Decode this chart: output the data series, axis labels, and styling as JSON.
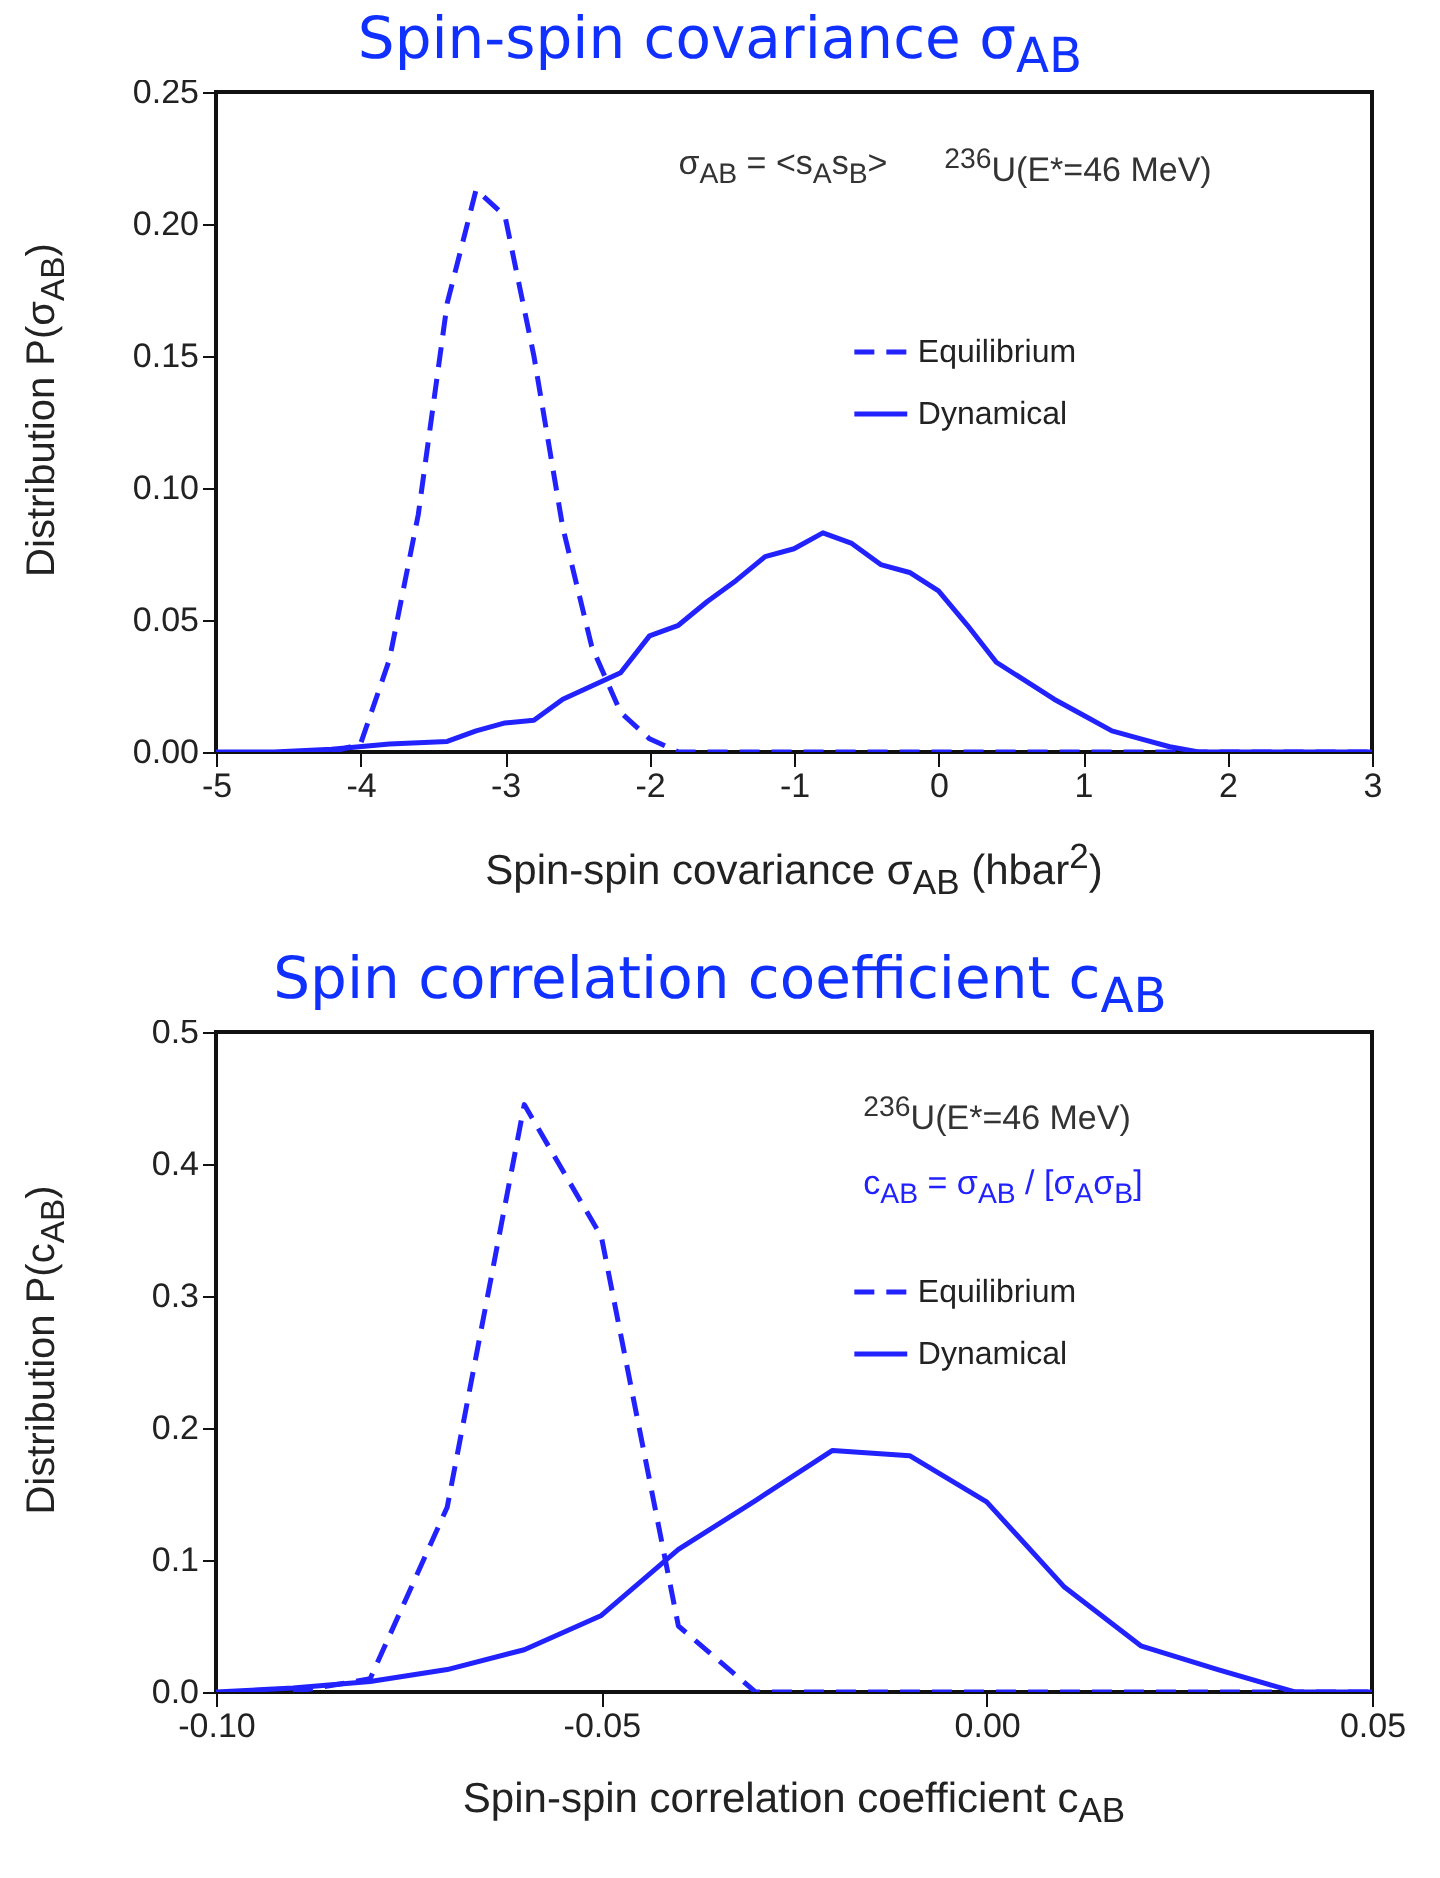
{
  "chart_data": [
    {
      "type": "line",
      "title": "Spin-spin covariance σ$_{AB}$",
      "xlabel": "Spin-spin covariance σ$_{AB}$  (hbar$^{2}$)",
      "ylabel": "Distribution P(σ$_{AB}$)",
      "annotations": [
        "σ$_{AB}$ = <s$_{A}$s$_{B}$>",
        "$^{236}$U(E*=46 MeV)"
      ],
      "xlim": [
        -5,
        3
      ],
      "xticks": [
        -5,
        -4,
        -3,
        -2,
        -1,
        0,
        1,
        2,
        3
      ],
      "ylim": [
        0,
        0.25
      ],
      "yticks": [
        {
          "value": 0,
          "label": "0.00"
        },
        {
          "value": 0.05,
          "label": "0.05"
        },
        {
          "value": 0.1,
          "label": "0.10"
        },
        {
          "value": 0.15,
          "label": "0.15"
        },
        {
          "value": 0.2,
          "label": "0.20"
        },
        {
          "value": 0.25,
          "label": "0.25"
        }
      ],
      "legend": "top right",
      "series": [
        {
          "name": "Equilibrium",
          "color": "#2222ff",
          "line_style": "dashed",
          "x": [
            -4.2,
            -4.0,
            -3.8,
            -3.6,
            -3.4,
            -3.2,
            -3.0,
            -2.8,
            -2.6,
            -2.4,
            -2.2,
            -2.0,
            -1.8,
            3.0
          ],
          "values": [
            0,
            0.003,
            0.035,
            0.09,
            0.17,
            0.213,
            0.203,
            0.15,
            0.085,
            0.04,
            0.015,
            0.005,
            0,
            0
          ]
        },
        {
          "name": "Dynamical",
          "color": "#2222ff",
          "line_style": "solid",
          "x": [
            -5,
            -4.6,
            -4.2,
            -3.8,
            -3.4,
            -3.2,
            -3.0,
            -2.8,
            -2.6,
            -2.4,
            -2.2,
            -2.0,
            -1.8,
            -1.6,
            -1.4,
            -1.2,
            -1.0,
            -0.8,
            -0.6,
            -0.4,
            -0.2,
            0,
            0.2,
            0.4,
            0.6,
            0.8,
            1.0,
            1.2,
            1.4,
            1.6,
            1.8,
            3.0
          ],
          "values": [
            0,
            0,
            0.001,
            0.003,
            0.004,
            0.008,
            0.011,
            0.012,
            0.02,
            0.025,
            0.03,
            0.044,
            0.048,
            0.057,
            0.065,
            0.074,
            0.077,
            0.083,
            0.079,
            0.071,
            0.068,
            0.061,
            0.048,
            0.034,
            0.027,
            0.02,
            0.014,
            0.008,
            0.005,
            0.002,
            0,
            0
          ]
        }
      ]
    },
    {
      "type": "line",
      "title": "Spin correlation coefficient c$_{AB}$",
      "xlabel": "Spin-spin correlation coefficient c$_{AB}$",
      "ylabel": "Distribution P(c$_{AB}$)",
      "annotations": [
        "$^{236}$U(E*=46 MeV)",
        "c$_{AB}$ = σ$_{AB}$ / [σ$_{A}$σ$_{B}$]"
      ],
      "xlim": [
        -0.1,
        0.05
      ],
      "xticks": [
        {
          "value": -0.1,
          "label": "-0.10"
        },
        {
          "value": -0.05,
          "label": "-0.05"
        },
        {
          "value": 0,
          "label": "0.00"
        },
        {
          "value": 0.05,
          "label": "0.05"
        }
      ],
      "ylim": [
        0,
        0.5
      ],
      "yticks": [
        {
          "value": 0,
          "label": "0.0"
        },
        {
          "value": 0.1,
          "label": "0.1"
        },
        {
          "value": 0.2,
          "label": "0.2"
        },
        {
          "value": 0.3,
          "label": "0.3"
        },
        {
          "value": 0.4,
          "label": "0.4"
        },
        {
          "value": 0.5,
          "label": "0.5"
        }
      ],
      "legend": "top right",
      "series": [
        {
          "name": "Equilibrium",
          "color": "#2222ff",
          "line_style": "dashed",
          "x": [
            -0.09,
            -0.08,
            -0.07,
            -0.06,
            -0.05,
            -0.04,
            -0.03,
            0.05
          ],
          "values": [
            0,
            0.01,
            0.14,
            0.445,
            0.345,
            0.05,
            0,
            0
          ]
        },
        {
          "name": "Dynamical",
          "color": "#2222ff",
          "line_style": "solid",
          "x": [
            -0.1,
            -0.09,
            -0.08,
            -0.07,
            -0.06,
            -0.05,
            -0.04,
            -0.03,
            -0.02,
            -0.01,
            0,
            0.01,
            0.02,
            0.03,
            0.04,
            0.05
          ],
          "values": [
            0,
            0.003,
            0.008,
            0.017,
            0.032,
            0.058,
            0.108,
            0.145,
            0.183,
            0.179,
            0.144,
            0.08,
            0.035,
            0.017,
            0,
            0
          ]
        }
      ]
    }
  ]
}
